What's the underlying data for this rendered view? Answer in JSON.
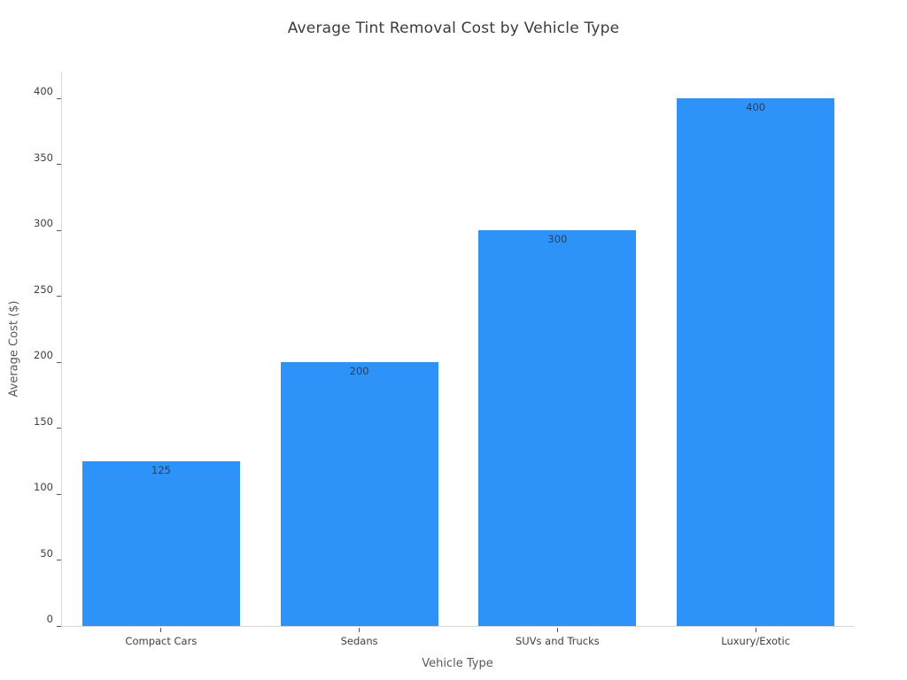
{
  "chart_data": {
    "type": "bar",
    "title": "Average Tint Removal Cost by Vehicle Type",
    "xlabel": "Vehicle Type",
    "ylabel": "Average Cost ($)",
    "categories": [
      "Compact Cars",
      "Sedans",
      "SUVs and Trucks",
      "Luxury/Exotic"
    ],
    "values": [
      125,
      200,
      300,
      400
    ],
    "bar_value_labels": [
      "125",
      "200",
      "300",
      "400"
    ],
    "yticks": [
      0,
      50,
      100,
      150,
      200,
      250,
      300,
      350,
      400
    ],
    "ylim": [
      0,
      421
    ],
    "grid": false,
    "legend_position": "none",
    "bar_label_placement": "inside-top",
    "colors": {
      "bar_fill": "#2e93f8",
      "bar_label_text": "#2a3f5f",
      "axis_line": "#d9d9d9",
      "tick_mark": "#555555",
      "tick_label_text": "#3f3f3f",
      "axis_title_text": "#5a5a5a",
      "title_text": "#3b3b3b",
      "background": "#ffffff"
    }
  }
}
